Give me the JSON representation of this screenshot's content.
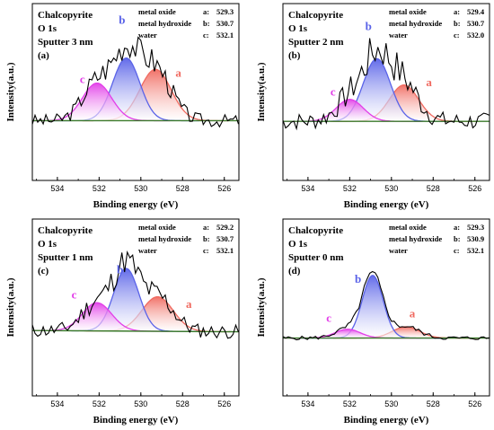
{
  "chart_data": [
    {
      "type": "line",
      "panel_id": "a",
      "panel_label": "(a)",
      "sample": "Chalcopyrite",
      "orbital": "O 1s",
      "sputter": "Sputter 3 nm",
      "xlabel": "Binding energy (eV)",
      "ylabel": "Intensity(a.u.)",
      "xlim": [
        535.2,
        525.3
      ],
      "x_ticks": [
        "534",
        "532",
        "530",
        "528",
        "526"
      ],
      "peaks": [
        {
          "tag": "a:",
          "name": "metal oxide",
          "center": 529.3,
          "letter": "a",
          "amp": 0.82,
          "sigma": 0.75,
          "color": "#f06a60",
          "label_x": 528.2,
          "label_y": 0.7
        },
        {
          "tag": "b:",
          "name": "metal hydroxide",
          "center": 530.7,
          "letter": "b",
          "amp": 1.0,
          "sigma": 0.65,
          "color": "#5a63e8",
          "label_x": 530.9,
          "label_y": 1.55
        },
        {
          "tag": "c:",
          "name": "water",
          "center": 532.1,
          "letter": "c",
          "amp": 0.6,
          "sigma": 0.7,
          "color": "#e23ee8",
          "label_x": 532.8,
          "label_y": 0.6
        }
      ],
      "background": [
        0.05,
        0.0
      ],
      "noise": 0.16,
      "seed": 3
    },
    {
      "type": "line",
      "panel_id": "b",
      "panel_label": "(b)",
      "sample": "Chalcopyrite",
      "orbital": "O 1s",
      "sputter": "Sputter 2 nm",
      "xlabel": "Binding energy (eV)",
      "ylabel": "Intensity(a.u.)",
      "xlim": [
        535.2,
        525.3
      ],
      "x_ticks": [
        "534",
        "532",
        "530",
        "528",
        "526"
      ],
      "peaks": [
        {
          "tag": "a:",
          "name": "metal oxide",
          "center": 529.4,
          "letter": "a",
          "amp": 0.58,
          "sigma": 0.7,
          "color": "#f06a60",
          "label_x": 528.2,
          "label_y": 0.55
        },
        {
          "tag": "b:",
          "name": "metal hydroxide",
          "center": 530.7,
          "letter": "b",
          "amp": 1.0,
          "sigma": 0.65,
          "color": "#5a63e8",
          "label_x": 531.1,
          "label_y": 1.45
        },
        {
          "tag": "c:",
          "name": "water",
          "center": 532.0,
          "letter": "c",
          "amp": 0.35,
          "sigma": 0.65,
          "color": "#e23ee8",
          "label_x": 532.8,
          "label_y": 0.4
        }
      ],
      "background": [
        0.04,
        0.0
      ],
      "noise": 0.22,
      "seed": 7
    },
    {
      "type": "line",
      "panel_id": "c",
      "panel_label": "(c)",
      "sample": "Chalcopyrite",
      "orbital": "O 1s",
      "sputter": "Sputter 1 nm",
      "xlabel": "Binding energy (eV)",
      "ylabel": "Intensity(a.u.)",
      "xlim": [
        535.2,
        525.3
      ],
      "x_ticks": [
        "534",
        "532",
        "530",
        "528",
        "526"
      ],
      "peaks": [
        {
          "tag": "a:",
          "name": "metal oxide",
          "center": 529.2,
          "letter": "a",
          "amp": 0.55,
          "sigma": 0.75,
          "color": "#f06a60",
          "label_x": 527.7,
          "label_y": 0.45
        },
        {
          "tag": "b:",
          "name": "metal hydroxide",
          "center": 530.7,
          "letter": "b",
          "amp": 1.0,
          "sigma": 0.6,
          "color": "#5a63e8",
          "label_x": 531.0,
          "label_y": 1.0
        },
        {
          "tag": "c:",
          "name": "water",
          "center": 532.1,
          "letter": "c",
          "amp": 0.45,
          "sigma": 0.7,
          "color": "#e23ee8",
          "label_x": 533.2,
          "label_y": 0.6
        }
      ],
      "background": [
        0.12,
        0.02
      ],
      "noise": 0.16,
      "seed": 11
    },
    {
      "type": "line",
      "panel_id": "d",
      "panel_label": "(d)",
      "sample": "Chalcopyrite",
      "orbital": "O 1s",
      "sputter": "Sputter 0 nm",
      "xlabel": "Binding energy (eV)",
      "ylabel": "Intensity(a.u.)",
      "xlim": [
        535.2,
        525.3
      ],
      "x_ticks": [
        "534",
        "532",
        "530",
        "528",
        "526"
      ],
      "peaks": [
        {
          "tag": "a:",
          "name": "metal oxide",
          "center": 529.3,
          "letter": "a",
          "amp": 0.18,
          "sigma": 0.65,
          "color": "#f06a60",
          "label_x": 529.0,
          "label_y": 0.3
        },
        {
          "tag": "b:",
          "name": "metal hydroxide",
          "center": 530.9,
          "letter": "b",
          "amp": 1.0,
          "sigma": 0.5,
          "color": "#5a63e8",
          "label_x": 531.6,
          "label_y": 0.85
        },
        {
          "tag": "c:",
          "name": "water",
          "center": 532.1,
          "letter": "c",
          "amp": 0.14,
          "sigma": 0.6,
          "color": "#e23ee8",
          "label_x": 533.0,
          "label_y": 0.23
        }
      ],
      "background": [
        0.02,
        0.0
      ],
      "noise": 0.05,
      "seed": 5
    }
  ],
  "value_labels": {
    "a": "529.3",
    "b": "530.7",
    "c": "532.1"
  }
}
